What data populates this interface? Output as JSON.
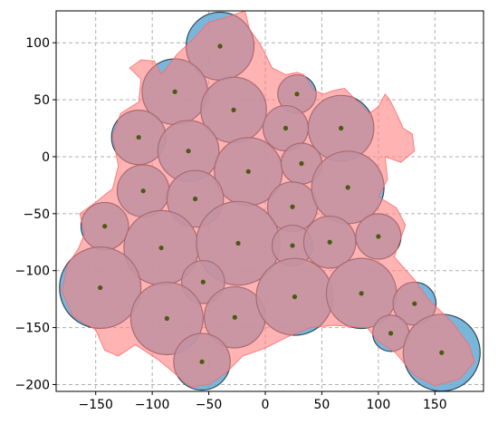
{
  "chart_data": {
    "type": "scatter",
    "title": "",
    "xlabel": "",
    "ylabel": "",
    "xlim": [
      -185,
      193
    ],
    "ylim": [
      -206,
      128
    ],
    "grid": true,
    "x_ticks": [
      -150,
      -100,
      -50,
      0,
      50,
      100,
      150
    ],
    "y_ticks": [
      -200,
      -150,
      -100,
      -50,
      0,
      50,
      100
    ],
    "colors": {
      "circle_fill": "#6baed6",
      "circle_edge": "#2f4a5a",
      "region_fill": "#ff8080",
      "region_edge": "#ff6666",
      "point": "#4a5a10",
      "grid": "#b0b0b0"
    },
    "circles": [
      {
        "x": -40,
        "y": 97,
        "r": 30
      },
      {
        "x": -80,
        "y": 57,
        "r": 29
      },
      {
        "x": -28,
        "y": 41,
        "r": 29
      },
      {
        "x": 28,
        "y": 55,
        "r": 17
      },
      {
        "x": -112,
        "y": 17,
        "r": 24
      },
      {
        "x": -68,
        "y": 5,
        "r": 27
      },
      {
        "x": 18,
        "y": 25,
        "r": 20
      },
      {
        "x": 67,
        "y": 25,
        "r": 29
      },
      {
        "x": -15,
        "y": -13,
        "r": 30
      },
      {
        "x": 32,
        "y": -6,
        "r": 18
      },
      {
        "x": -108,
        "y": -30,
        "r": 23
      },
      {
        "x": -62,
        "y": -37,
        "r": 25
      },
      {
        "x": 24,
        "y": -44,
        "r": 22
      },
      {
        "x": 73,
        "y": -27,
        "r": 32
      },
      {
        "x": -142,
        "y": -61,
        "r": 21
      },
      {
        "x": -92,
        "y": -80,
        "r": 33
      },
      {
        "x": -24,
        "y": -76,
        "r": 37
      },
      {
        "x": 24,
        "y": -78,
        "r": 18
      },
      {
        "x": 57,
        "y": -75,
        "r": 23
      },
      {
        "x": 100,
        "y": -70,
        "r": 20
      },
      {
        "x": -146,
        "y": -115,
        "r": 36
      },
      {
        "x": -55,
        "y": -110,
        "r": 19
      },
      {
        "x": -87,
        "y": -142,
        "r": 32
      },
      {
        "x": -27,
        "y": -141,
        "r": 27
      },
      {
        "x": 26,
        "y": -123,
        "r": 34
      },
      {
        "x": 85,
        "y": -120,
        "r": 31
      },
      {
        "x": 132,
        "y": -129,
        "r": 19
      },
      {
        "x": 111,
        "y": -155,
        "r": 16
      },
      {
        "x": 156,
        "y": -172,
        "r": 34
      },
      {
        "x": -56,
        "y": -180,
        "r": 25
      }
    ],
    "region": [
      [
        -35,
        122
      ],
      [
        -18,
        128
      ],
      [
        -14,
        112
      ],
      [
        -4,
        98
      ],
      [
        6,
        78
      ],
      [
        18,
        72
      ],
      [
        28,
        74
      ],
      [
        34,
        72
      ],
      [
        40,
        63
      ],
      [
        43,
        58
      ],
      [
        52,
        55
      ],
      [
        60,
        58
      ],
      [
        70,
        60
      ],
      [
        82,
        48
      ],
      [
        92,
        38
      ],
      [
        100,
        44
      ],
      [
        106,
        55
      ],
      [
        110,
        50
      ],
      [
        116,
        38
      ],
      [
        122,
        25
      ],
      [
        130,
        20
      ],
      [
        132,
        5
      ],
      [
        120,
        -5
      ],
      [
        106,
        0
      ],
      [
        108,
        -20
      ],
      [
        100,
        -35
      ],
      [
        116,
        -45
      ],
      [
        124,
        -60
      ],
      [
        114,
        -88
      ],
      [
        132,
        -108
      ],
      [
        144,
        -125
      ],
      [
        165,
        -145
      ],
      [
        180,
        -165
      ],
      [
        185,
        -180
      ],
      [
        172,
        -195
      ],
      [
        150,
        -201
      ],
      [
        132,
        -192
      ],
      [
        115,
        -172
      ],
      [
        100,
        -162
      ],
      [
        90,
        -150
      ],
      [
        60,
        -148
      ],
      [
        40,
        -150
      ],
      [
        20,
        -158
      ],
      [
        0,
        -168
      ],
      [
        -20,
        -175
      ],
      [
        -35,
        -190
      ],
      [
        -50,
        -200
      ],
      [
        -66,
        -202
      ],
      [
        -78,
        -192
      ],
      [
        -95,
        -178
      ],
      [
        -115,
        -165
      ],
      [
        -130,
        -175
      ],
      [
        -142,
        -170
      ],
      [
        -150,
        -152
      ],
      [
        -170,
        -140
      ],
      [
        -180,
        -118
      ],
      [
        -175,
        -95
      ],
      [
        -165,
        -80
      ],
      [
        -160,
        -68
      ],
      [
        -164,
        -50
      ],
      [
        -150,
        -40
      ],
      [
        -135,
        -28
      ],
      [
        -130,
        -8
      ],
      [
        -135,
        18
      ],
      [
        -128,
        38
      ],
      [
        -112,
        48
      ],
      [
        -110,
        68
      ],
      [
        -120,
        78
      ],
      [
        -110,
        85
      ],
      [
        -98,
        84
      ],
      [
        -92,
        72
      ],
      [
        -78,
        90
      ],
      [
        -65,
        102
      ],
      [
        -50,
        118
      ]
    ]
  }
}
